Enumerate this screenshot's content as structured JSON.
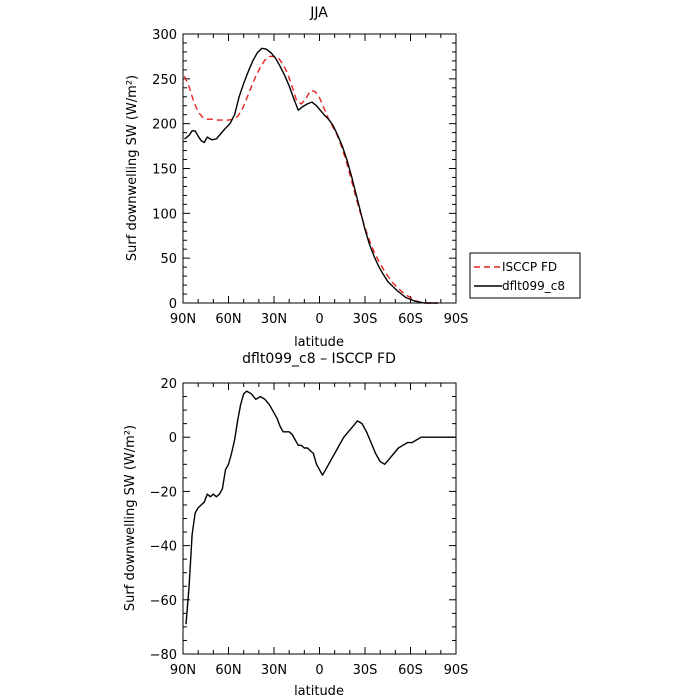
{
  "chart_data": [
    {
      "type": "line",
      "title": "JJA",
      "xlabel": "latitude",
      "ylabel": "Surf downwelling SW (W/m²)",
      "xlim": [
        90,
        -90
      ],
      "ylim": [
        0,
        300
      ],
      "x_ticks": [
        90,
        60,
        30,
        0,
        -30,
        -60,
        -90
      ],
      "x_tick_labels": [
        "90N",
        "60N",
        "30N",
        "0",
        "30S",
        "60S",
        "90S"
      ],
      "y_ticks": [
        0,
        50,
        100,
        150,
        200,
        250,
        300
      ],
      "y_tick_labels": [
        "0",
        "50",
        "100",
        "150",
        "200",
        "250",
        "300"
      ],
      "legend": "right",
      "series": [
        {
          "name": "ISCCP FD",
          "color": "#e8201f",
          "dash": true,
          "x": [
            89,
            86,
            83,
            80,
            77,
            74,
            71,
            68,
            64,
            60,
            57,
            54,
            51,
            48,
            45,
            42,
            39,
            36,
            33,
            30,
            27,
            24,
            21,
            18,
            15,
            12,
            9,
            6,
            3,
            0,
            -3,
            -6,
            -9,
            -12,
            -15,
            -18,
            -21,
            -24,
            -27,
            -30,
            -33,
            -36,
            -39,
            -42,
            -45,
            -48,
            -51,
            -54,
            -57,
            -60,
            -63,
            -66,
            -69,
            -72,
            -75,
            -78
          ],
          "y": [
            253,
            241,
            225,
            213,
            207,
            205,
            205,
            204,
            204,
            204,
            205,
            208,
            216,
            228,
            241,
            253,
            263,
            271,
            275,
            275,
            273,
            266,
            256,
            241,
            225,
            222,
            228,
            237,
            236,
            229,
            217,
            205,
            196,
            186,
            172,
            156,
            137,
            118,
            100,
            84,
            69,
            57,
            47,
            38,
            30,
            23,
            18,
            13,
            9,
            6,
            3,
            1,
            0,
            0,
            0,
            0
          ]
        },
        {
          "name": "dflt099_c8",
          "color": "#000000",
          "dash": false,
          "x": [
            89,
            86,
            84,
            82,
            80,
            78,
            76,
            74,
            71,
            68,
            65,
            62,
            59,
            56,
            53,
            50,
            47,
            44,
            41,
            38,
            35,
            32,
            29,
            26,
            23,
            20,
            17,
            14,
            11,
            8,
            5,
            2,
            0,
            -3,
            -6,
            -9,
            -12,
            -15,
            -18,
            -21,
            -24,
            -27,
            -30,
            -33,
            -36,
            -39,
            -42,
            -45,
            -48,
            -51,
            -54,
            -57,
            -60,
            -63,
            -66,
            -69,
            -72,
            -75,
            -78
          ],
          "y": [
            183,
            187,
            192,
            192,
            186,
            181,
            179,
            185,
            182,
            183,
            189,
            195,
            200,
            210,
            230,
            245,
            258,
            270,
            279,
            284,
            283,
            279,
            273,
            264,
            254,
            242,
            228,
            215,
            219,
            222,
            224,
            220,
            216,
            210,
            205,
            198,
            187,
            175,
            160,
            142,
            122,
            102,
            82,
            65,
            52,
            41,
            32,
            24,
            19,
            14,
            10,
            6,
            4,
            2,
            1,
            0,
            0,
            0,
            0
          ]
        }
      ]
    },
    {
      "type": "line",
      "title": "dflt099_c8 – ISCCP FD",
      "xlabel": "latitude",
      "ylabel": "Surf downwelling SW (W/m²)",
      "xlim": [
        90,
        -90
      ],
      "ylim": [
        -80,
        20
      ],
      "x_ticks": [
        90,
        60,
        30,
        0,
        -30,
        -60,
        -90
      ],
      "x_tick_labels": [
        "90N",
        "60N",
        "30N",
        "0",
        "30S",
        "60S",
        "90S"
      ],
      "y_ticks": [
        -80,
        -60,
        -40,
        -20,
        0,
        20
      ],
      "y_tick_labels": [
        "−80",
        "−60",
        "−40",
        "−20",
        "0",
        "20"
      ],
      "series": [
        {
          "name": "",
          "color": "#000000",
          "dash": false,
          "x": [
            88,
            86,
            84,
            82,
            80,
            78,
            76,
            74,
            72,
            70,
            68,
            66,
            64,
            62,
            60,
            58,
            56,
            54,
            52,
            50,
            48,
            45,
            42,
            39,
            36,
            33,
            30,
            28,
            26,
            24,
            22,
            20,
            18,
            16,
            14,
            12,
            10,
            8,
            6,
            4,
            2,
            0,
            -2,
            -4,
            -6,
            -8,
            -10,
            -13,
            -16,
            -19,
            -22,
            -25,
            -28,
            -31,
            -34,
            -37,
            -40,
            -43,
            -46,
            -49,
            -52,
            -55,
            -58,
            -61,
            -64,
            -67,
            -70,
            -73,
            -76,
            -80,
            -85,
            -90
          ],
          "y": [
            -69,
            -55,
            -36,
            -28,
            -26,
            -25,
            -24,
            -21,
            -22,
            -21,
            -22,
            -21,
            -19,
            -12,
            -10,
            -6,
            -1,
            6,
            12,
            16,
            17,
            16,
            14,
            15,
            14,
            12,
            9,
            7,
            4,
            2,
            2,
            2,
            1,
            -1,
            -3,
            -3,
            -4,
            -4,
            -5,
            -6,
            -10,
            -12,
            -14,
            -12,
            -10,
            -8,
            -6,
            -3,
            0,
            2,
            4,
            6,
            5,
            2,
            -2,
            -6,
            -9,
            -10,
            -8,
            -6,
            -4,
            -3,
            -2,
            -2,
            -1,
            0,
            0,
            0,
            0,
            0,
            0,
            0
          ]
        }
      ]
    }
  ]
}
